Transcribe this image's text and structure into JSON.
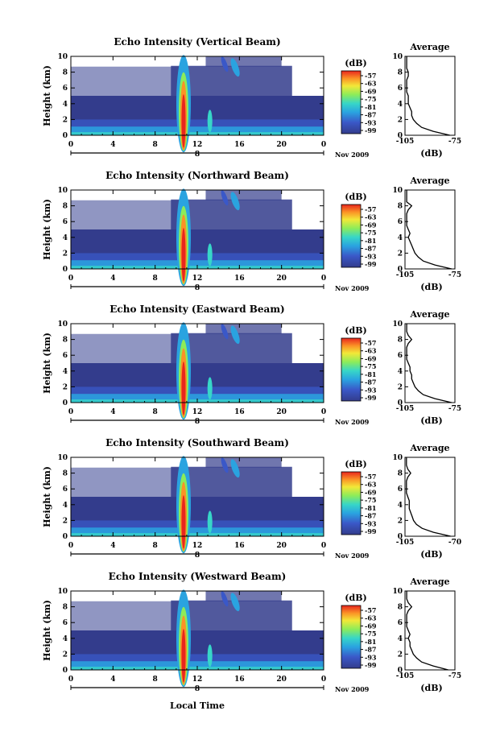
{
  "figure": {
    "x_axis_label": "Local Time"
  },
  "chart_data": [
    {
      "type": "heatmap",
      "title": "Echo Intensity (Vertical Beam)",
      "ylabel": "Height (km)",
      "xlim": [
        0,
        24
      ],
      "ylim": [
        0,
        10
      ],
      "x_ticks": [
        "0",
        "4",
        "8",
        "12",
        "16",
        "20",
        "0"
      ],
      "y_ticks": [
        "0",
        "2",
        "4",
        "6",
        "8",
        "10"
      ],
      "date_marker": "8",
      "date_label": "Nov 2009",
      "colorbar": {
        "unit": "(dB)",
        "ticks": [
          "-57",
          "-63",
          "-69",
          "-75",
          "-81",
          "-87",
          "-93",
          "-99"
        ]
      },
      "profile": {
        "title": "Average",
        "xlabel": "(dB)",
        "xlim": [
          -105,
          -75
        ],
        "x_ticks": [
          "-105",
          "-75"
        ],
        "y_ticks": [
          "0",
          "2",
          "4",
          "6",
          "8",
          "10"
        ],
        "values": [
          [
            0,
            -78
          ],
          [
            0.5,
            -88
          ],
          [
            1,
            -95
          ],
          [
            1.5,
            -98
          ],
          [
            2,
            -100
          ],
          [
            2.5,
            -101
          ],
          [
            3,
            -101
          ],
          [
            3.5,
            -102
          ],
          [
            4,
            -103
          ],
          [
            4.5,
            -103
          ],
          [
            5,
            -103
          ],
          [
            5.5,
            -104
          ],
          [
            6,
            -104
          ],
          [
            6.5,
            -104
          ],
          [
            7,
            -104
          ],
          [
            7.5,
            -103
          ],
          [
            8,
            -103
          ],
          [
            8.5,
            -104
          ],
          [
            9,
            -104
          ],
          [
            9.5,
            -104
          ],
          [
            10,
            -104
          ]
        ]
      }
    },
    {
      "type": "heatmap",
      "title": "Echo Intensity (Northward Beam)",
      "ylabel": "Height (km)",
      "xlim": [
        0,
        24
      ],
      "ylim": [
        0,
        10
      ],
      "x_ticks": [
        "0",
        "4",
        "8",
        "12",
        "16",
        "20",
        "0"
      ],
      "y_ticks": [
        "0",
        "2",
        "4",
        "6",
        "8",
        "10"
      ],
      "date_marker": "8",
      "date_label": "Nov 2009",
      "colorbar": {
        "unit": "(dB)",
        "ticks": [
          "-57",
          "-63",
          "-69",
          "-75",
          "-81",
          "-87",
          "-93",
          "-99"
        ]
      },
      "profile": {
        "title": "Average",
        "xlabel": "(dB)",
        "xlim": [
          -105,
          -75
        ],
        "x_ticks": [
          "-105",
          "-75"
        ],
        "y_ticks": [
          "0",
          "2",
          "4",
          "6",
          "8",
          "10"
        ],
        "values": [
          [
            0,
            -77
          ],
          [
            0.5,
            -87
          ],
          [
            1,
            -94
          ],
          [
            1.5,
            -97
          ],
          [
            2,
            -99
          ],
          [
            2.5,
            -100
          ],
          [
            3,
            -101
          ],
          [
            3.5,
            -102
          ],
          [
            4,
            -103
          ],
          [
            4.5,
            -102
          ],
          [
            5,
            -103
          ],
          [
            5.5,
            -104
          ],
          [
            6,
            -104
          ],
          [
            6.5,
            -104
          ],
          [
            7,
            -104
          ],
          [
            7.5,
            -103
          ],
          [
            8,
            -101
          ],
          [
            8.5,
            -104
          ],
          [
            9,
            -104
          ],
          [
            9.5,
            -104
          ],
          [
            10,
            -104
          ]
        ]
      }
    },
    {
      "type": "heatmap",
      "title": "Echo Intensity (Eastward Beam)",
      "ylabel": "Height (km)",
      "xlim": [
        0,
        24
      ],
      "ylim": [
        0,
        10
      ],
      "x_ticks": [
        "0",
        "4",
        "8",
        "12",
        "16",
        "20",
        "0"
      ],
      "y_ticks": [
        "0",
        "2",
        "4",
        "6",
        "8",
        "10"
      ],
      "date_marker": "8",
      "date_label": "Nov 2009",
      "colorbar": {
        "unit": "(dB)",
        "ticks": [
          "-57",
          "-63",
          "-69",
          "-75",
          "-81",
          "-87",
          "-93",
          "-99"
        ]
      },
      "profile": {
        "title": "Average",
        "xlabel": "(dB)",
        "xlim": [
          -105,
          -75
        ],
        "x_ticks": [
          "-105",
          "-75"
        ],
        "y_ticks": [
          "0",
          "2",
          "4",
          "6",
          "8",
          "10"
        ],
        "values": [
          [
            0,
            -77
          ],
          [
            0.5,
            -87
          ],
          [
            1,
            -94
          ],
          [
            1.5,
            -97
          ],
          [
            2,
            -99
          ],
          [
            2.5,
            -100
          ],
          [
            3,
            -101
          ],
          [
            3.5,
            -101
          ],
          [
            4,
            -102
          ],
          [
            4.5,
            -102
          ],
          [
            5,
            -103
          ],
          [
            5.5,
            -104
          ],
          [
            6,
            -104
          ],
          [
            6.5,
            -104
          ],
          [
            7,
            -104
          ],
          [
            7.5,
            -103
          ],
          [
            8,
            -101
          ],
          [
            8.5,
            -103
          ],
          [
            9,
            -104
          ],
          [
            9.5,
            -104
          ],
          [
            10,
            -104
          ]
        ]
      }
    },
    {
      "type": "heatmap",
      "title": "Echo Intensity (Southward Beam)",
      "ylabel": "Height (km)",
      "xlim": [
        0,
        24
      ],
      "ylim": [
        0,
        10
      ],
      "x_ticks": [
        "0",
        "4",
        "8",
        "12",
        "16",
        "20",
        "0"
      ],
      "y_ticks": [
        "0",
        "2",
        "4",
        "6",
        "8",
        "10"
      ],
      "date_marker": "8",
      "date_label": "Nov 2009",
      "colorbar": {
        "unit": "(dB)",
        "ticks": [
          "-57",
          "-63",
          "-69",
          "-75",
          "-81",
          "-87",
          "-93",
          "-99"
        ]
      },
      "profile": {
        "title": "Average",
        "xlabel": "(dB)",
        "xlim": [
          -105,
          -70
        ],
        "x_ticks": [
          "-105",
          "-70"
        ],
        "y_ticks": [
          "0",
          "2",
          "4",
          "6",
          "8",
          "10"
        ],
        "values": [
          [
            0,
            -73
          ],
          [
            0.5,
            -85
          ],
          [
            1,
            -93
          ],
          [
            1.5,
            -97
          ],
          [
            2,
            -99
          ],
          [
            2.5,
            -100
          ],
          [
            3,
            -101
          ],
          [
            3.5,
            -102
          ],
          [
            4,
            -102
          ],
          [
            4.5,
            -102
          ],
          [
            5,
            -103
          ],
          [
            5.5,
            -104
          ],
          [
            6,
            -104
          ],
          [
            6.5,
            -104
          ],
          [
            7,
            -104
          ],
          [
            7.5,
            -103
          ],
          [
            8,
            -101
          ],
          [
            8.5,
            -103
          ],
          [
            9,
            -104
          ],
          [
            9.5,
            -104
          ],
          [
            10,
            -104
          ]
        ]
      }
    },
    {
      "type": "heatmap",
      "title": "Echo Intensity (Westward Beam)",
      "ylabel": "Height (km)",
      "xlim": [
        0,
        24
      ],
      "ylim": [
        0,
        10
      ],
      "x_ticks": [
        "0",
        "4",
        "8",
        "12",
        "16",
        "20",
        "0"
      ],
      "y_ticks": [
        "0",
        "2",
        "4",
        "6",
        "8",
        "10"
      ],
      "date_marker": "8",
      "date_label": "Nov 2009",
      "colorbar": {
        "unit": "(dB)",
        "ticks": [
          "-57",
          "-63",
          "-69",
          "-75",
          "-81",
          "-87",
          "-93",
          "-99"
        ]
      },
      "profile": {
        "title": "Average",
        "xlabel": "(dB)",
        "xlim": [
          -105,
          -75
        ],
        "x_ticks": [
          "-105",
          "-75"
        ],
        "y_ticks": [
          "0",
          "2",
          "4",
          "6",
          "8",
          "10"
        ],
        "values": [
          [
            0,
            -79
          ],
          [
            0.5,
            -88
          ],
          [
            1,
            -95
          ],
          [
            1.5,
            -98
          ],
          [
            2,
            -100
          ],
          [
            2.5,
            -101
          ],
          [
            3,
            -102
          ],
          [
            3.5,
            -102
          ],
          [
            4,
            -103
          ],
          [
            4.5,
            -102
          ],
          [
            5,
            -103
          ],
          [
            5.5,
            -104
          ],
          [
            6,
            -104
          ],
          [
            6.5,
            -104
          ],
          [
            7,
            -104
          ],
          [
            7.5,
            -103
          ],
          [
            8,
            -101
          ],
          [
            8.5,
            -103
          ],
          [
            9,
            -104
          ],
          [
            9.5,
            -104
          ],
          [
            10,
            -104
          ]
        ]
      }
    }
  ]
}
